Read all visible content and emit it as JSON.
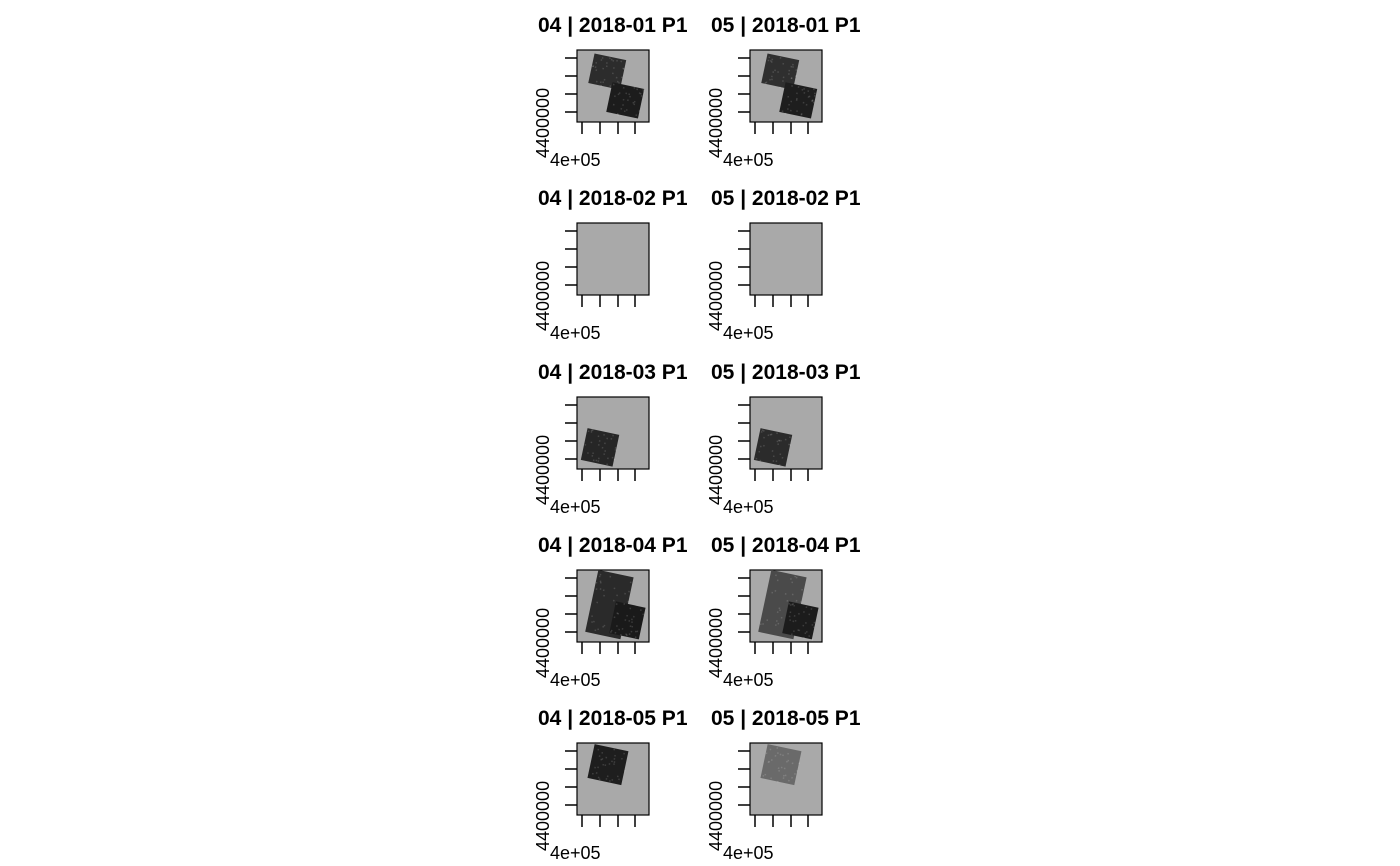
{
  "chart_data": {
    "type": "heatmap",
    "layout": {
      "rows": 5,
      "cols": 2
    },
    "colors": {
      "background": "#a9a9a9",
      "axis": "#000000",
      "tile_dark": "#1f1f1f"
    },
    "panels": [
      {
        "title": "04 | 2018-01 P1",
        "title_full_left": "04 | 2018-01 P1",
        "xtick_label": "4e+05",
        "ytick_label": "4400000",
        "tiles": [
          {
            "cx": 0.42,
            "cy": 0.3,
            "w": 0.45,
            "h": 0.42,
            "rot": 12,
            "shade": "#2c2c2c"
          },
          {
            "cx": 0.67,
            "cy": 0.7,
            "w": 0.45,
            "h": 0.42,
            "rot": 12,
            "shade": "#1c1c1c"
          }
        ]
      },
      {
        "title": "05 | 2018-01 P1",
        "xtick_label": "4e+05",
        "ytick_label": "4400000",
        "tiles": [
          {
            "cx": 0.42,
            "cy": 0.3,
            "w": 0.45,
            "h": 0.42,
            "rot": 12,
            "shade": "#2f2f2f"
          },
          {
            "cx": 0.67,
            "cy": 0.7,
            "w": 0.45,
            "h": 0.42,
            "rot": 12,
            "shade": "#1e1e1e"
          }
        ]
      },
      {
        "title": "04 | 2018-02 P1",
        "xtick_label": "4e+05",
        "ytick_label": "4400000",
        "tiles": []
      },
      {
        "title": "05 | 2018-02 P1",
        "xtick_label": "4e+05",
        "ytick_label": "4400000",
        "tiles": []
      },
      {
        "title": "04 | 2018-03 P1",
        "xtick_label": "4e+05",
        "ytick_label": "4400000",
        "tiles": [
          {
            "cx": 0.32,
            "cy": 0.7,
            "w": 0.45,
            "h": 0.45,
            "rot": 12,
            "shade": "#262626"
          }
        ]
      },
      {
        "title": "05 | 2018-03 P1",
        "xtick_label": "4e+05",
        "ytick_label": "4400000",
        "tiles": [
          {
            "cx": 0.32,
            "cy": 0.7,
            "w": 0.45,
            "h": 0.45,
            "rot": 12,
            "shade": "#2b2b2b"
          }
        ]
      },
      {
        "title": "04 | 2018-04 P1",
        "xtick_label": "4e+05",
        "ytick_label": "4400000",
        "tiles": [
          {
            "cx": 0.45,
            "cy": 0.48,
            "w": 0.5,
            "h": 0.88,
            "rot": 12,
            "shade": "#2a2a2a"
          },
          {
            "cx": 0.7,
            "cy": 0.7,
            "w": 0.42,
            "h": 0.45,
            "rot": 12,
            "shade": "#1a1a1a"
          }
        ]
      },
      {
        "title": "05 | 2018-04 P1",
        "xtick_label": "4e+05",
        "ytick_label": "4400000",
        "tiles": [
          {
            "cx": 0.45,
            "cy": 0.48,
            "w": 0.5,
            "h": 0.88,
            "rot": 12,
            "shade": "#4a4a4a"
          },
          {
            "cx": 0.7,
            "cy": 0.7,
            "w": 0.42,
            "h": 0.45,
            "rot": 12,
            "shade": "#1c1c1c"
          }
        ]
      },
      {
        "title": "04 | 2018-05 P1",
        "xtick_label": "4e+05",
        "ytick_label": "4400000",
        "tiles": [
          {
            "cx": 0.43,
            "cy": 0.3,
            "w": 0.48,
            "h": 0.48,
            "rot": 12,
            "shade": "#1e1e1e"
          }
        ]
      },
      {
        "title": "05 | 2018-05 P1",
        "xtick_label": "4e+05",
        "ytick_label": "4400000",
        "tiles": [
          {
            "cx": 0.43,
            "cy": 0.3,
            "w": 0.48,
            "h": 0.48,
            "rot": 12,
            "shade": "#6a6a6a"
          }
        ]
      }
    ]
  }
}
